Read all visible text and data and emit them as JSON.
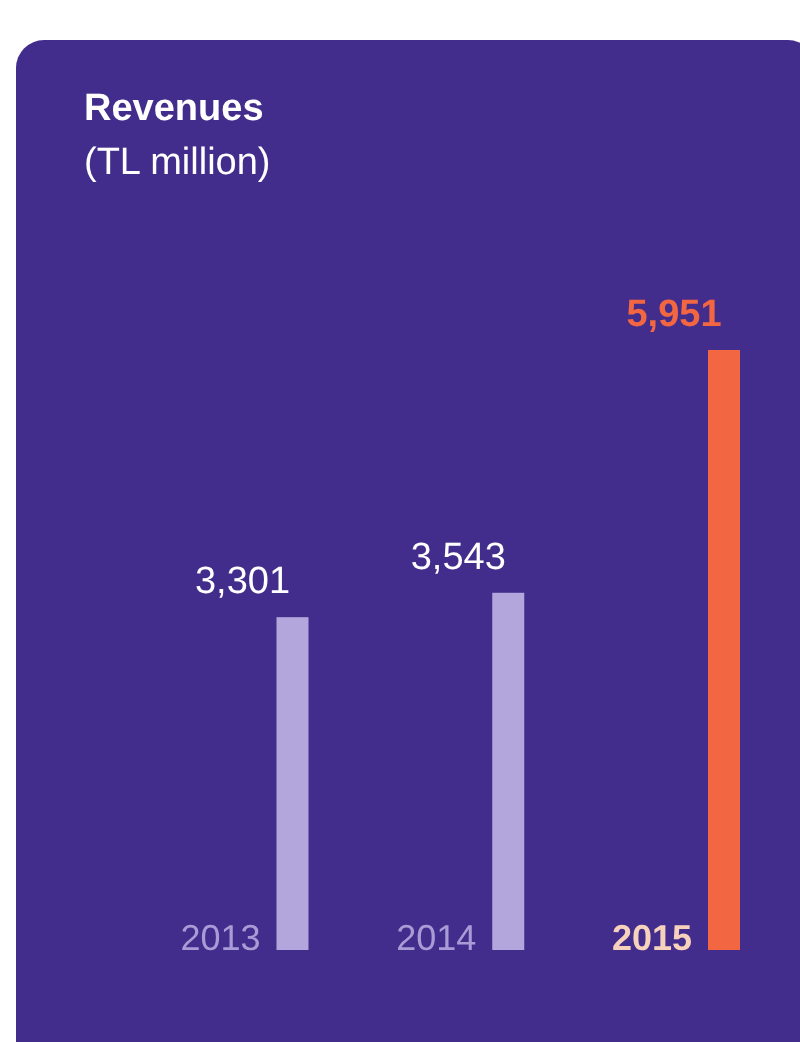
{
  "chart_data": {
    "type": "bar",
    "title": "Revenues",
    "subtitle": "(TL million)",
    "categories": [
      "2013",
      "2014",
      "2015"
    ],
    "values": [
      3301,
      3543,
      5951
    ],
    "colors": [
      "#b3a6dc",
      "#b3a6dc",
      "#f26641"
    ],
    "value_labels": [
      "3,301",
      "3,543",
      "5,951"
    ]
  }
}
